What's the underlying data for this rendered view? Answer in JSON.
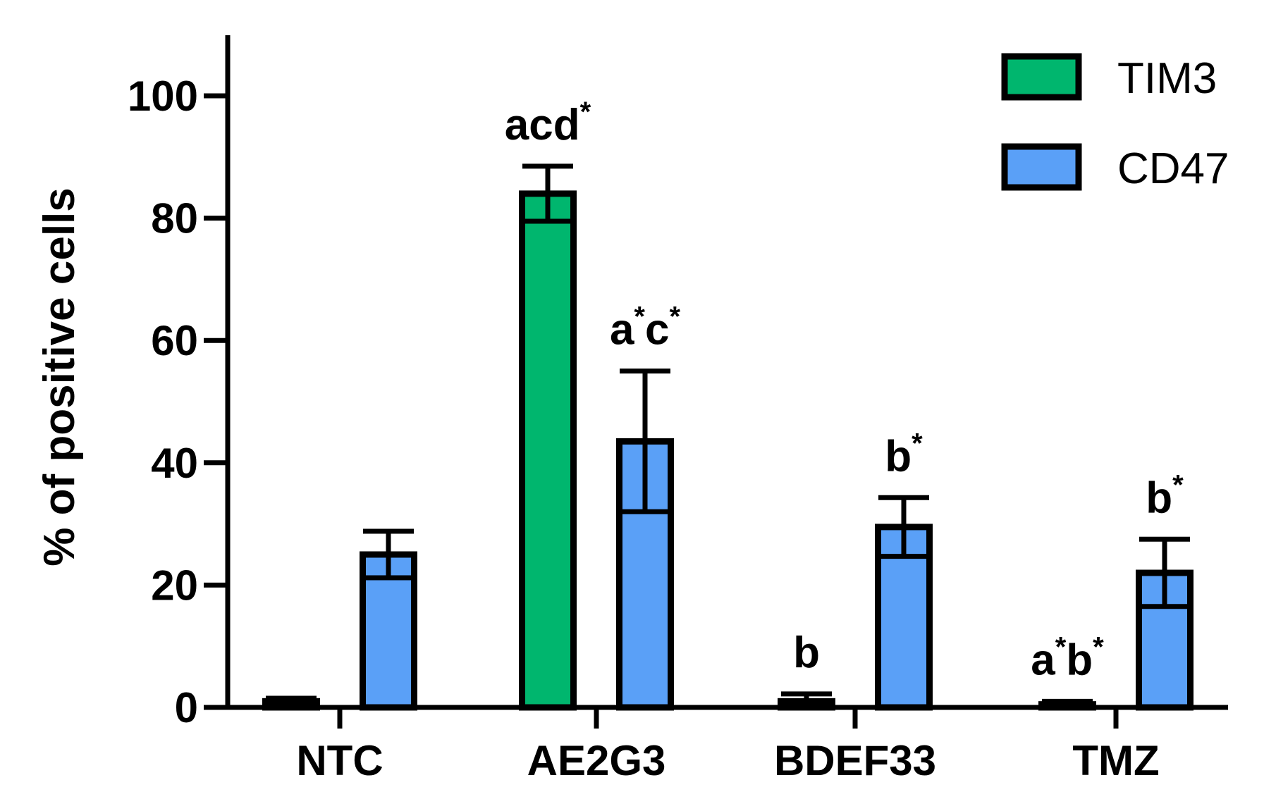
{
  "chart_data": {
    "type": "bar",
    "categories": [
      "NTC",
      "AE2G3",
      "BDEF33",
      "TMZ"
    ],
    "series": [
      {
        "name": "TIM3",
        "color": "#00b66e",
        "values": [
          1,
          84,
          1,
          0.5
        ],
        "errors": [
          0.5,
          4.5,
          1.2,
          0.5
        ],
        "annotations": [
          [],
          [
            {
              "t": "acd",
              "sup": false
            },
            {
              "t": "*",
              "sup": true
            }
          ],
          [
            {
              "t": "b",
              "sup": false
            }
          ],
          [
            {
              "t": "a",
              "sup": false
            },
            {
              "t": "*",
              "sup": true
            },
            {
              "t": "b",
              "sup": false
            },
            {
              "t": "*",
              "sup": true
            }
          ]
        ]
      },
      {
        "name": "CD47",
        "color": "#5aa0f7",
        "values": [
          25,
          43.5,
          29.5,
          22
        ],
        "errors": [
          3.8,
          11.5,
          4.8,
          5.5
        ],
        "annotations": [
          [],
          [
            {
              "t": "a",
              "sup": false
            },
            {
              "t": "*",
              "sup": true
            },
            {
              "t": "c",
              "sup": false
            },
            {
              "t": "*",
              "sup": true
            }
          ],
          [
            {
              "t": "b",
              "sup": false
            },
            {
              "t": "*",
              "sup": true
            }
          ],
          [
            {
              "t": "b",
              "sup": false
            },
            {
              "t": "*",
              "sup": true
            }
          ]
        ]
      }
    ],
    "ylabel": "% of positive cells",
    "xlabel": "",
    "ylim": [
      0,
      110
    ],
    "yticks": [
      0,
      20,
      40,
      60,
      80,
      100
    ],
    "grid": false,
    "legend": "top-right"
  }
}
